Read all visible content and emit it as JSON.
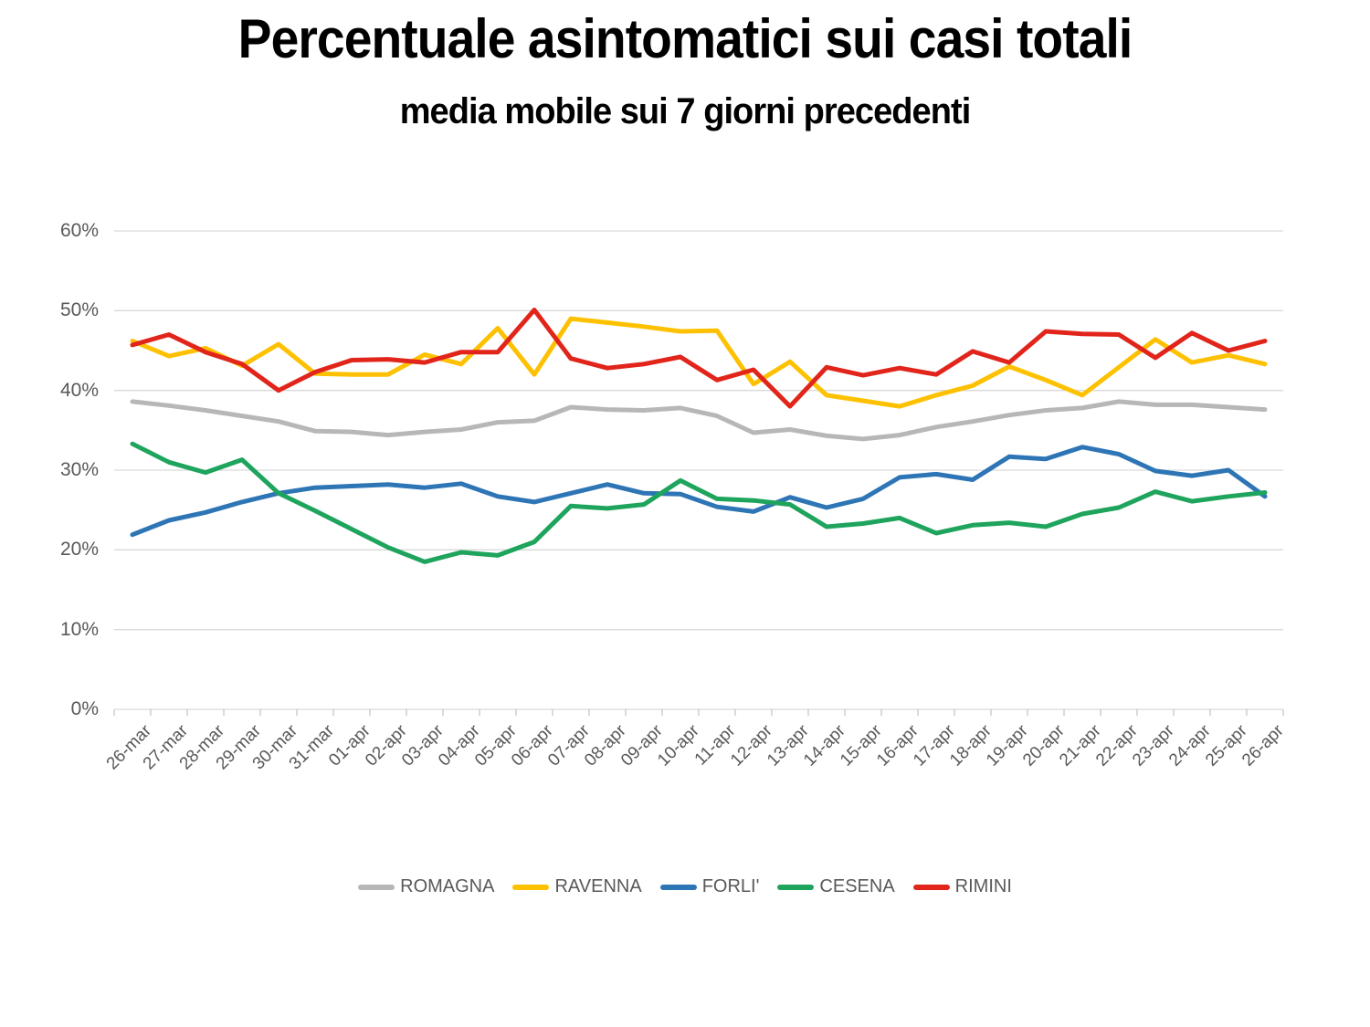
{
  "title": "Percentuale asintomatici sui casi totali",
  "subtitle": "media mobile sui 7 giorni precedenti",
  "chart_data": {
    "type": "line",
    "title": "Percentuale asintomatici sui casi totali",
    "subtitle": "media mobile sui 7 giorni precedenti",
    "xlabel": "",
    "ylabel": "",
    "ylim": [
      0,
      60
    ],
    "ytick_step": 10,
    "ytick_labels": [
      "0%",
      "10%",
      "20%",
      "30%",
      "40%",
      "50%",
      "60%"
    ],
    "grid": true,
    "legend_position": "bottom",
    "axis_text_color": "#595959",
    "gridline_color": "#d9d9d9",
    "tick_color": "#c6c6c6",
    "categories": [
      "26-mar",
      "27-mar",
      "28-mar",
      "29-mar",
      "30-mar",
      "31-mar",
      "01-apr",
      "02-apr",
      "03-apr",
      "04-apr",
      "05-apr",
      "06-apr",
      "07-apr",
      "08-apr",
      "09-apr",
      "10-apr",
      "11-apr",
      "12-apr",
      "13-apr",
      "14-apr",
      "15-apr",
      "16-apr",
      "17-apr",
      "18-apr",
      "19-apr",
      "20-apr",
      "21-apr",
      "22-apr",
      "23-apr",
      "24-apr",
      "25-apr",
      "26-apr"
    ],
    "series": [
      {
        "name": "ROMAGNA",
        "color": "#b7b7b7",
        "values": [
          38.6,
          38.1,
          37.5,
          36.8,
          36.1,
          34.9,
          34.8,
          34.4,
          34.8,
          35.1,
          36.0,
          36.2,
          37.9,
          37.6,
          37.5,
          37.8,
          36.8,
          34.7,
          35.1,
          34.3,
          33.9,
          34.4,
          35.4,
          36.1,
          36.9,
          37.5,
          37.8,
          38.6,
          38.2,
          38.2,
          37.9,
          37.6
        ]
      },
      {
        "name": "RAVENNA",
        "color": "#fdc101",
        "values": [
          46.2,
          44.3,
          45.3,
          43.1,
          45.8,
          42.1,
          42.0,
          42.0,
          44.5,
          43.3,
          47.8,
          42.0,
          49.0,
          48.5,
          48.0,
          47.4,
          47.5,
          40.8,
          43.6,
          39.4,
          38.7,
          38.0,
          39.4,
          40.6,
          43.0,
          41.3,
          39.4,
          42.9,
          46.4,
          43.5,
          44.4,
          43.3
        ]
      },
      {
        "name": "FORLI'",
        "color": "#2e75b6",
        "values": [
          21.9,
          23.7,
          24.7,
          26.0,
          27.1,
          27.8,
          28.0,
          28.2,
          27.8,
          28.3,
          26.7,
          26.0,
          27.1,
          28.2,
          27.1,
          27.0,
          25.4,
          24.8,
          26.6,
          25.3,
          26.4,
          29.1,
          29.5,
          28.8,
          31.7,
          31.4,
          32.9,
          32.0,
          29.9,
          29.3,
          30.0,
          26.7
        ]
      },
      {
        "name": "CESENA",
        "color": "#1ea45c",
        "values": [
          33.3,
          31.0,
          29.7,
          31.3,
          27.1,
          24.9,
          22.6,
          20.3,
          18.5,
          19.7,
          19.3,
          21.0,
          25.5,
          25.2,
          25.7,
          28.7,
          26.4,
          26.2,
          25.7,
          22.9,
          23.3,
          24.0,
          22.1,
          23.1,
          23.4,
          22.9,
          24.5,
          25.3,
          27.3,
          26.1,
          26.7,
          27.2
        ]
      },
      {
        "name": "RIMINI",
        "color": "#e1251b",
        "values": [
          45.7,
          47.0,
          44.8,
          43.3,
          40.0,
          42.3,
          43.8,
          43.9,
          43.5,
          44.8,
          44.8,
          50.1,
          44.0,
          42.8,
          43.3,
          44.2,
          41.3,
          42.6,
          38.0,
          42.9,
          41.9,
          42.8,
          42.0,
          44.9,
          43.5,
          47.4,
          47.1,
          47.0,
          44.1,
          47.2,
          45.0,
          46.2
        ]
      }
    ]
  }
}
